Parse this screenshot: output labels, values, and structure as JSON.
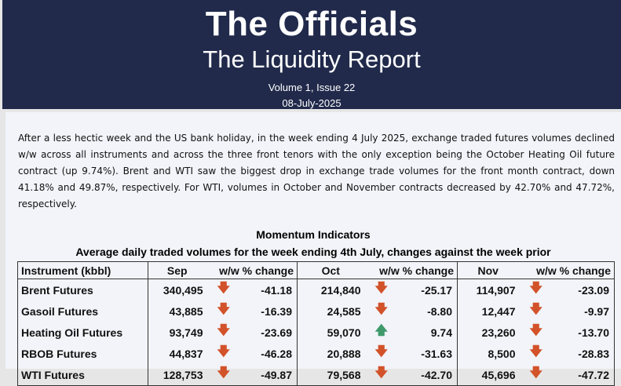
{
  "header": {
    "logo": "The Officials",
    "title": "The Liquidity Report",
    "volume": "Volume 1, Issue 22",
    "date": "08-July-2025"
  },
  "summary": "After a less hectic week and the US bank holiday, in the week ending 4 July 2025, exchange traded futures volumes declined w/w across all instruments and across the three front tenors with the only exception being the October Heating Oil future contract (up 9.74%). Brent and WTI saw the biggest drop in exchange trade volumes for the front month contract, down 41.18% and 49.87%, respectively. For WTI, volumes in October and November contracts decreased by 42.70% and 47.72%, respectively.",
  "table": {
    "title": "Momentum Indicators",
    "subtitle": "Average daily traded volumes for the week ending 4th July, changes against the week prior",
    "headers": [
      "Instrument (kbbl)",
      "Sep",
      "w/w % change",
      "Oct",
      "w/w % change",
      "Nov",
      "w/w % change"
    ],
    "rows": [
      {
        "name": "Brent Futures",
        "v": [
          "340,495",
          "214,840",
          "114,907"
        ],
        "c": [
          "-41.18",
          "-25.17",
          "-23.09"
        ],
        "d": [
          "down",
          "down",
          "down"
        ]
      },
      {
        "name": "Gasoil Futures",
        "v": [
          "43,885",
          "24,585",
          "12,447"
        ],
        "c": [
          "-16.39",
          "-8.80",
          "-9.97"
        ],
        "d": [
          "down",
          "down",
          "down"
        ]
      },
      {
        "name": "Heating Oil Futures",
        "v": [
          "93,749",
          "59,070",
          "23,260"
        ],
        "c": [
          "-23.69",
          "9.74",
          "-13.70"
        ],
        "d": [
          "down",
          "up",
          "down"
        ]
      },
      {
        "name": "RBOB Futures",
        "v": [
          "44,837",
          "20,888",
          "8,500"
        ],
        "c": [
          "-46.28",
          "-31.63",
          "-28.83"
        ],
        "d": [
          "down",
          "down",
          "down"
        ]
      },
      {
        "name": "WTI Futures",
        "v": [
          "128,753",
          "79,568",
          "45,696"
        ],
        "c": [
          "-49.87",
          "-42.70",
          "-47.72"
        ],
        "d": [
          "down",
          "down",
          "down"
        ]
      }
    ]
  },
  "colors": {
    "navy": "#212a4b",
    "down": "#d2522a",
    "up": "#3f9a6a"
  }
}
